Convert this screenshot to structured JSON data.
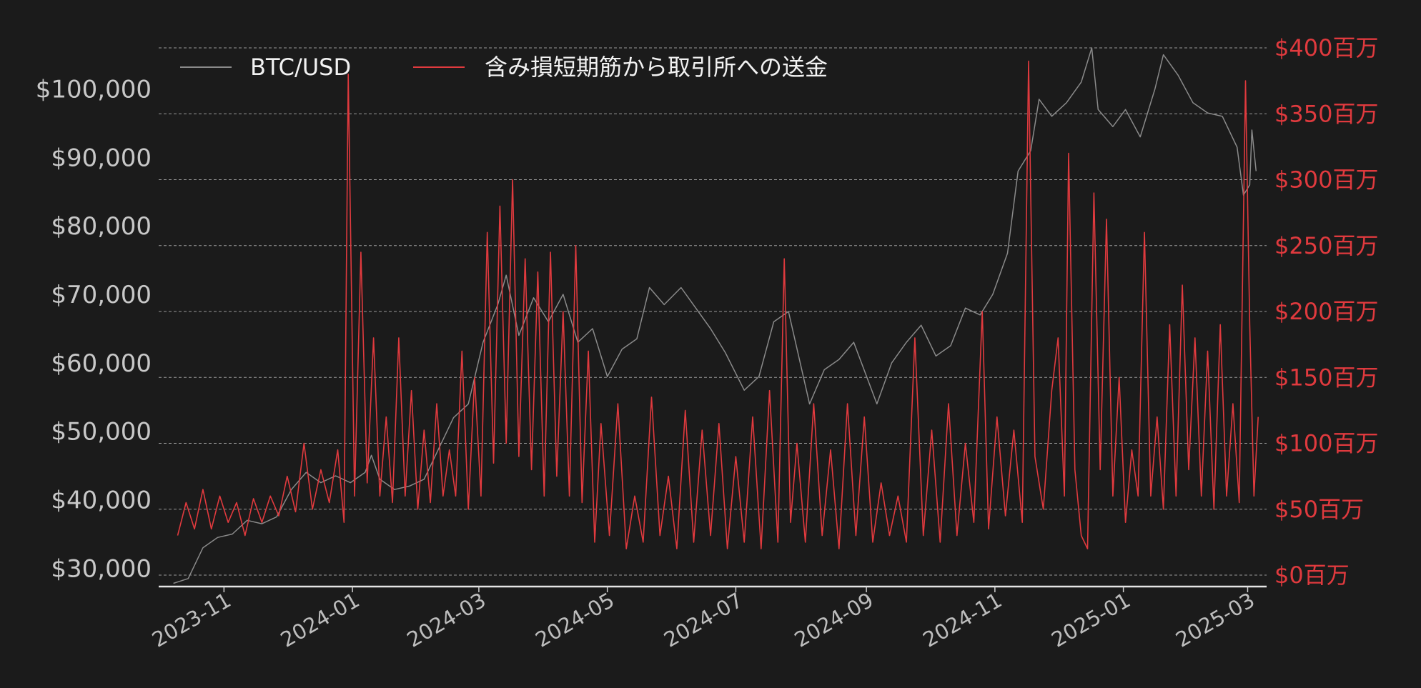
{
  "chart_data": {
    "type": "line",
    "title": "",
    "legend": {
      "placement": "top-left",
      "entries": [
        {
          "name": "BTC/USD",
          "color": "#8a8a8a"
        },
        {
          "name": "含み損短期筋から取引所への送金",
          "color": "#e03a3e"
        }
      ]
    },
    "x_axis": {
      "type": "date",
      "range": [
        "2023-10-01",
        "2025-03-10"
      ],
      "ticks": [
        "2023-11",
        "2024-01",
        "2024-03",
        "2024-05",
        "2024-07",
        "2024-09",
        "2024-11",
        "2025-01",
        "2025-03"
      ],
      "tick_dates": [
        "2023-11-01",
        "2024-01-01",
        "2024-03-01",
        "2024-05-01",
        "2024-07-01",
        "2024-09-01",
        "2024-11-01",
        "2025-01-01",
        "2025-03-01"
      ]
    },
    "y_axis_left": {
      "ylim": [
        29000,
        106000
      ],
      "ticks": [
        30000,
        40000,
        50000,
        60000,
        70000,
        80000,
        90000,
        100000
      ],
      "tick_labels": [
        "$30,000",
        "$40,000",
        "$50,000",
        "$60,000",
        "$70,000",
        "$80,000",
        "$90,000",
        "$100,000"
      ]
    },
    "y_axis_right": {
      "ylim": [
        0,
        400
      ],
      "ticks": [
        0,
        50,
        100,
        150,
        200,
        250,
        300,
        350,
        400
      ],
      "tick_labels": [
        "$0百万",
        "$50百万",
        "$100百万",
        "$150百万",
        "$200百万",
        "$250百万",
        "$300百万",
        "$350百万",
        "$400百万"
      ]
    },
    "grid": "horizontal dashed",
    "series": [
      {
        "name": "BTC/USD",
        "axis": "left",
        "color": "#8a8a8a",
        "points": [
          [
            "2023-10-08",
            27800
          ],
          [
            "2023-10-15",
            28500
          ],
          [
            "2023-10-22",
            33000
          ],
          [
            "2023-10-29",
            34500
          ],
          [
            "2023-11-05",
            35000
          ],
          [
            "2023-11-12",
            37000
          ],
          [
            "2023-11-19",
            36500
          ],
          [
            "2023-11-26",
            37500
          ],
          [
            "2023-12-03",
            41500
          ],
          [
            "2023-12-10",
            44000
          ],
          [
            "2023-12-17",
            42500
          ],
          [
            "2023-12-24",
            43500
          ],
          [
            "2023-12-31",
            42500
          ],
          [
            "2024-01-07",
            44000
          ],
          [
            "2024-01-10",
            46500
          ],
          [
            "2024-01-14",
            43000
          ],
          [
            "2024-01-21",
            41500
          ],
          [
            "2024-01-28",
            42000
          ],
          [
            "2024-02-04",
            43000
          ],
          [
            "2024-02-11",
            47500
          ],
          [
            "2024-02-18",
            52000
          ],
          [
            "2024-02-25",
            54000
          ],
          [
            "2024-03-03",
            63000
          ],
          [
            "2024-03-10",
            68500
          ],
          [
            "2024-03-14",
            72800
          ],
          [
            "2024-03-20",
            64000
          ],
          [
            "2024-03-27",
            69500
          ],
          [
            "2024-04-03",
            66000
          ],
          [
            "2024-04-10",
            70000
          ],
          [
            "2024-04-17",
            63000
          ],
          [
            "2024-04-24",
            65000
          ],
          [
            "2024-05-01",
            58000
          ],
          [
            "2024-05-08",
            62000
          ],
          [
            "2024-05-15",
            63500
          ],
          [
            "2024-05-21",
            71000
          ],
          [
            "2024-05-28",
            68500
          ],
          [
            "2024-06-05",
            71000
          ],
          [
            "2024-06-12",
            68000
          ],
          [
            "2024-06-19",
            65000
          ],
          [
            "2024-06-26",
            61500
          ],
          [
            "2024-07-05",
            56000
          ],
          [
            "2024-07-12",
            58000
          ],
          [
            "2024-07-19",
            66000
          ],
          [
            "2024-07-26",
            67500
          ],
          [
            "2024-08-05",
            54000
          ],
          [
            "2024-08-12",
            59000
          ],
          [
            "2024-08-19",
            60500
          ],
          [
            "2024-08-26",
            63000
          ],
          [
            "2024-09-06",
            54000
          ],
          [
            "2024-09-13",
            60000
          ],
          [
            "2024-09-20",
            63000
          ],
          [
            "2024-09-27",
            65500
          ],
          [
            "2024-10-04",
            61000
          ],
          [
            "2024-10-11",
            62500
          ],
          [
            "2024-10-18",
            68000
          ],
          [
            "2024-10-25",
            67000
          ],
          [
            "2024-10-31",
            70000
          ],
          [
            "2024-11-07",
            76000
          ],
          [
            "2024-11-12",
            88000
          ],
          [
            "2024-11-18",
            91000
          ],
          [
            "2024-11-22",
            98500
          ],
          [
            "2024-11-28",
            96000
          ],
          [
            "2024-12-05",
            98000
          ],
          [
            "2024-12-12",
            101000
          ],
          [
            "2024-12-17",
            106000
          ],
          [
            "2024-12-20",
            97000
          ],
          [
            "2024-12-27",
            94500
          ],
          [
            "2025-01-02",
            97000
          ],
          [
            "2025-01-09",
            93000
          ],
          [
            "2025-01-16",
            100000
          ],
          [
            "2025-01-20",
            105000
          ],
          [
            "2025-01-27",
            102000
          ],
          [
            "2025-02-03",
            98000
          ],
          [
            "2025-02-10",
            96500
          ],
          [
            "2025-02-17",
            96000
          ],
          [
            "2025-02-24",
            91500
          ],
          [
            "2025-02-27",
            84500
          ],
          [
            "2025-03-02",
            86000
          ],
          [
            "2025-03-03",
            94000
          ],
          [
            "2025-03-05",
            88000
          ]
        ]
      },
      {
        "name": "含み損短期筋から取引所への送金",
        "axis": "right",
        "color": "#e03a3e",
        "points": [
          [
            "2023-10-10",
            30
          ],
          [
            "2023-10-14",
            55
          ],
          [
            "2023-10-18",
            35
          ],
          [
            "2023-10-22",
            65
          ],
          [
            "2023-10-26",
            35
          ],
          [
            "2023-10-30",
            60
          ],
          [
            "2023-11-03",
            40
          ],
          [
            "2023-11-07",
            55
          ],
          [
            "2023-11-11",
            30
          ],
          [
            "2023-11-15",
            58
          ],
          [
            "2023-11-19",
            40
          ],
          [
            "2023-11-23",
            60
          ],
          [
            "2023-11-27",
            45
          ],
          [
            "2023-12-01",
            75
          ],
          [
            "2023-12-05",
            48
          ],
          [
            "2023-12-09",
            100
          ],
          [
            "2023-12-13",
            50
          ],
          [
            "2023-12-17",
            80
          ],
          [
            "2023-12-21",
            55
          ],
          [
            "2023-12-25",
            95
          ],
          [
            "2023-12-28",
            40
          ],
          [
            "2023-12-30",
            380
          ],
          [
            "2024-01-02",
            60
          ],
          [
            "2024-01-05",
            245
          ],
          [
            "2024-01-08",
            70
          ],
          [
            "2024-01-11",
            180
          ],
          [
            "2024-01-14",
            60
          ],
          [
            "2024-01-17",
            120
          ],
          [
            "2024-01-20",
            55
          ],
          [
            "2024-01-23",
            180
          ],
          [
            "2024-01-26",
            60
          ],
          [
            "2024-01-29",
            140
          ],
          [
            "2024-02-01",
            50
          ],
          [
            "2024-02-04",
            110
          ],
          [
            "2024-02-07",
            55
          ],
          [
            "2024-02-10",
            130
          ],
          [
            "2024-02-13",
            60
          ],
          [
            "2024-02-16",
            95
          ],
          [
            "2024-02-19",
            60
          ],
          [
            "2024-02-22",
            170
          ],
          [
            "2024-02-25",
            50
          ],
          [
            "2024-02-28",
            150
          ],
          [
            "2024-03-02",
            60
          ],
          [
            "2024-03-05",
            260
          ],
          [
            "2024-03-08",
            85
          ],
          [
            "2024-03-11",
            280
          ],
          [
            "2024-03-14",
            100
          ],
          [
            "2024-03-17",
            300
          ],
          [
            "2024-03-20",
            90
          ],
          [
            "2024-03-23",
            240
          ],
          [
            "2024-03-26",
            80
          ],
          [
            "2024-03-29",
            230
          ],
          [
            "2024-04-01",
            60
          ],
          [
            "2024-04-04",
            245
          ],
          [
            "2024-04-07",
            75
          ],
          [
            "2024-04-10",
            200
          ],
          [
            "2024-04-13",
            60
          ],
          [
            "2024-04-16",
            250
          ],
          [
            "2024-04-19",
            55
          ],
          [
            "2024-04-22",
            170
          ],
          [
            "2024-04-25",
            25
          ],
          [
            "2024-04-28",
            115
          ],
          [
            "2024-05-02",
            30
          ],
          [
            "2024-05-06",
            130
          ],
          [
            "2024-05-10",
            20
          ],
          [
            "2024-05-14",
            60
          ],
          [
            "2024-05-18",
            25
          ],
          [
            "2024-05-22",
            135
          ],
          [
            "2024-05-26",
            30
          ],
          [
            "2024-05-30",
            75
          ],
          [
            "2024-06-03",
            20
          ],
          [
            "2024-06-07",
            125
          ],
          [
            "2024-06-11",
            25
          ],
          [
            "2024-06-15",
            110
          ],
          [
            "2024-06-19",
            30
          ],
          [
            "2024-06-23",
            115
          ],
          [
            "2024-06-27",
            20
          ],
          [
            "2024-07-01",
            90
          ],
          [
            "2024-07-05",
            25
          ],
          [
            "2024-07-09",
            120
          ],
          [
            "2024-07-13",
            20
          ],
          [
            "2024-07-17",
            140
          ],
          [
            "2024-07-21",
            25
          ],
          [
            "2024-07-24",
            240
          ],
          [
            "2024-07-27",
            40
          ],
          [
            "2024-07-30",
            100
          ],
          [
            "2024-08-03",
            25
          ],
          [
            "2024-08-07",
            130
          ],
          [
            "2024-08-11",
            30
          ],
          [
            "2024-08-15",
            95
          ],
          [
            "2024-08-19",
            20
          ],
          [
            "2024-08-23",
            130
          ],
          [
            "2024-08-27",
            30
          ],
          [
            "2024-08-31",
            120
          ],
          [
            "2024-09-04",
            25
          ],
          [
            "2024-09-08",
            70
          ],
          [
            "2024-09-12",
            30
          ],
          [
            "2024-09-16",
            60
          ],
          [
            "2024-09-20",
            25
          ],
          [
            "2024-09-24",
            180
          ],
          [
            "2024-09-28",
            30
          ],
          [
            "2024-10-02",
            110
          ],
          [
            "2024-10-06",
            25
          ],
          [
            "2024-10-10",
            130
          ],
          [
            "2024-10-14",
            30
          ],
          [
            "2024-10-18",
            100
          ],
          [
            "2024-10-22",
            40
          ],
          [
            "2024-10-26",
            200
          ],
          [
            "2024-10-29",
            35
          ],
          [
            "2024-11-02",
            120
          ],
          [
            "2024-11-06",
            45
          ],
          [
            "2024-11-10",
            110
          ],
          [
            "2024-11-14",
            40
          ],
          [
            "2024-11-17",
            390
          ],
          [
            "2024-11-20",
            90
          ],
          [
            "2024-11-24",
            50
          ],
          [
            "2024-11-28",
            140
          ],
          [
            "2024-12-01",
            180
          ],
          [
            "2024-12-04",
            60
          ],
          [
            "2024-12-06",
            320
          ],
          [
            "2024-12-09",
            80
          ],
          [
            "2024-12-12",
            30
          ],
          [
            "2024-12-15",
            20
          ],
          [
            "2024-12-18",
            290
          ],
          [
            "2024-12-21",
            80
          ],
          [
            "2024-12-24",
            270
          ],
          [
            "2024-12-27",
            60
          ],
          [
            "2024-12-30",
            150
          ],
          [
            "2025-01-02",
            40
          ],
          [
            "2025-01-05",
            95
          ],
          [
            "2025-01-08",
            60
          ],
          [
            "2025-01-11",
            260
          ],
          [
            "2025-01-14",
            60
          ],
          [
            "2025-01-17",
            120
          ],
          [
            "2025-01-20",
            50
          ],
          [
            "2025-01-23",
            190
          ],
          [
            "2025-01-26",
            60
          ],
          [
            "2025-01-29",
            220
          ],
          [
            "2025-02-01",
            80
          ],
          [
            "2025-02-04",
            180
          ],
          [
            "2025-02-07",
            60
          ],
          [
            "2025-02-10",
            170
          ],
          [
            "2025-02-13",
            50
          ],
          [
            "2025-02-16",
            190
          ],
          [
            "2025-02-19",
            60
          ],
          [
            "2025-02-22",
            130
          ],
          [
            "2025-02-25",
            55
          ],
          [
            "2025-02-28",
            375
          ],
          [
            "2025-03-02",
            190
          ],
          [
            "2025-03-04",
            60
          ],
          [
            "2025-03-06",
            120
          ]
        ]
      }
    ]
  }
}
